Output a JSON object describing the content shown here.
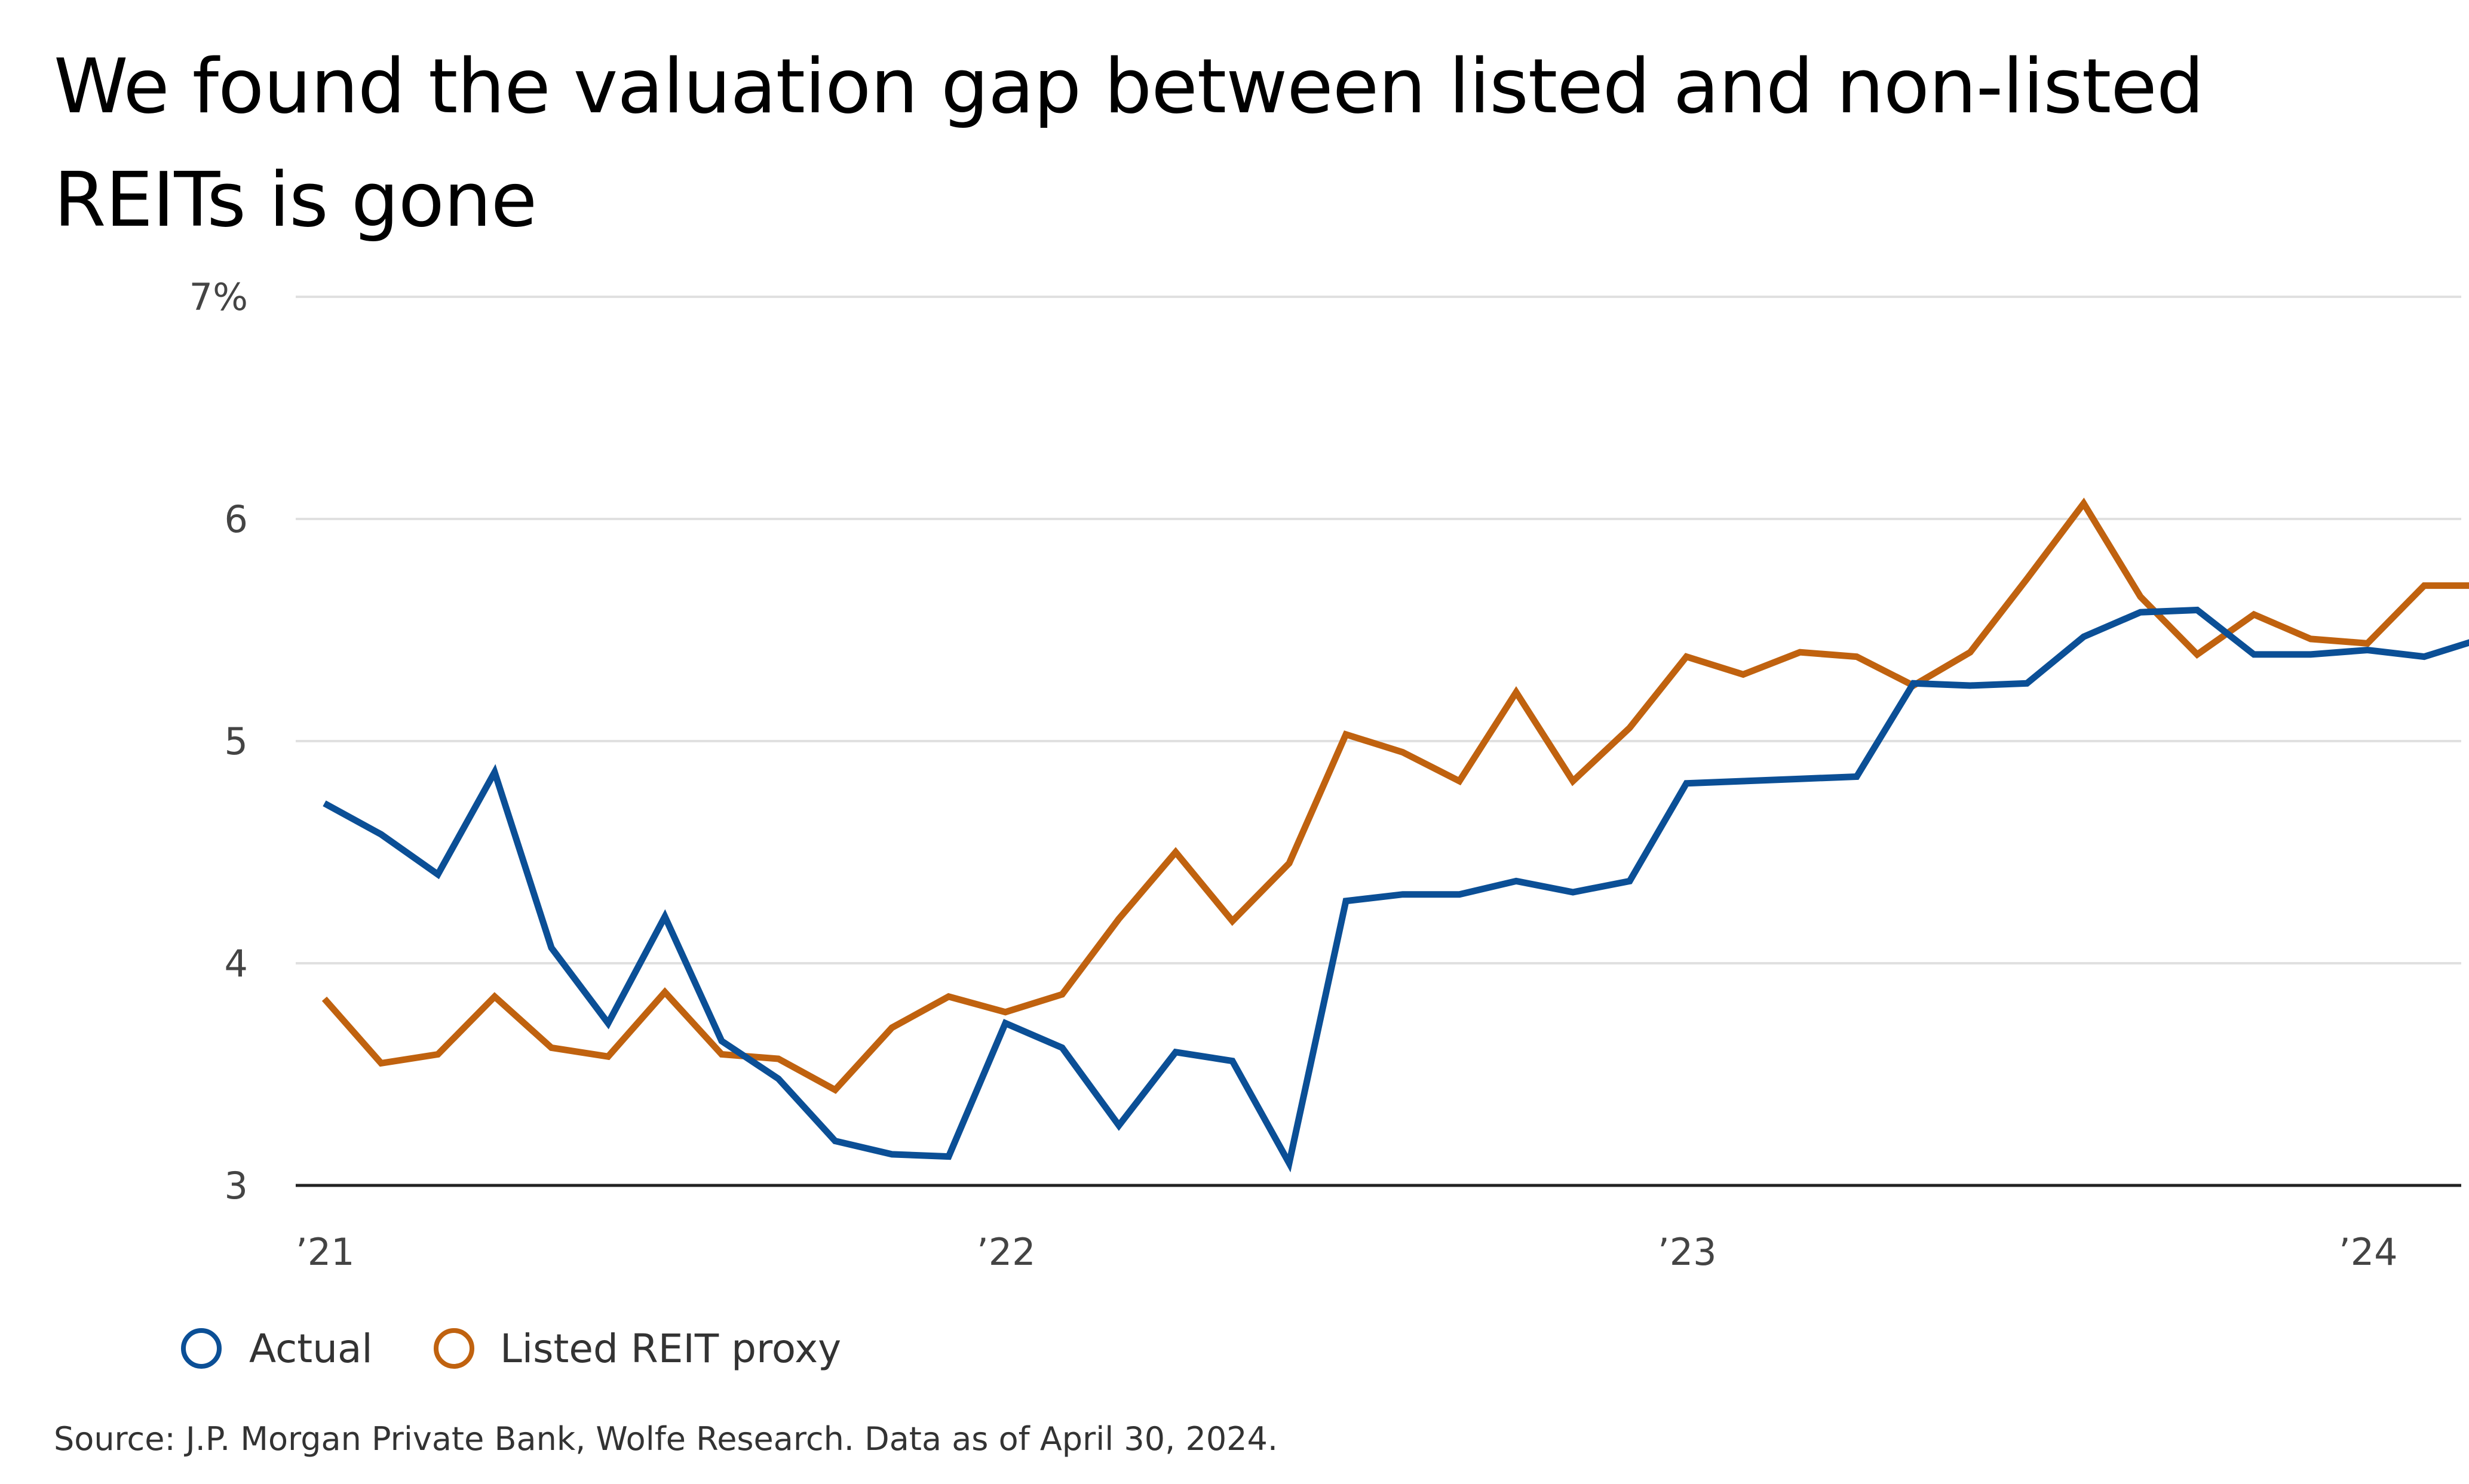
{
  "title": "We found the valuation gap between listed and non-listed REITs is gone",
  "source": "Source: J.P. Morgan Private Bank, Wolfe Research. Data as of April 30, 2024.",
  "colors": {
    "actual": "#0b4f96",
    "proxy": "#c0620f",
    "grid": "#e0e0e0",
    "axis": "#222222"
  },
  "chart_data": {
    "type": "line",
    "title": "We found the valuation gap between listed and non-listed REITs is gone",
    "xlabel": "",
    "ylabel": "",
    "ylim": [
      3,
      7
    ],
    "y_ticks": [
      {
        "value": 7,
        "label": "7%"
      },
      {
        "value": 6,
        "label": "6"
      },
      {
        "value": 5,
        "label": "5"
      },
      {
        "value": 4,
        "label": "4"
      },
      {
        "value": 3,
        "label": "3"
      }
    ],
    "x_ticks": [
      {
        "value": 0,
        "label": "’21"
      },
      {
        "value": 12,
        "label": "’22"
      },
      {
        "value": 24,
        "label": "’23"
      },
      {
        "value": 36,
        "label": "’24"
      }
    ],
    "x_range": [
      -0.5,
      38
    ],
    "grid": true,
    "legend_position": "bottom-left",
    "x": [
      0,
      1,
      2,
      3,
      4,
      5,
      6,
      7,
      8,
      9,
      10,
      11,
      12,
      13,
      14,
      15,
      16,
      17,
      18,
      19,
      20,
      21,
      22,
      23,
      24,
      25,
      26,
      27,
      28,
      29,
      30,
      31,
      32,
      33,
      34,
      35,
      36,
      37,
      38
    ],
    "series": [
      {
        "name": "Actual",
        "color_key": "actual",
        "values": [
          4.72,
          4.58,
          4.4,
          4.86,
          4.07,
          3.73,
          4.21,
          3.65,
          3.48,
          3.2,
          3.14,
          3.13,
          3.73,
          3.62,
          3.27,
          3.6,
          3.56,
          3.1,
          4.28,
          4.31,
          4.31,
          4.37,
          4.32,
          4.37,
          4.81,
          4.82,
          4.83,
          4.84,
          5.26,
          5.25,
          5.26,
          5.47,
          5.58,
          5.59,
          5.39,
          5.39,
          5.41,
          5.38,
          5.46
        ]
      },
      {
        "name": "Listed REIT proxy",
        "color_key": "proxy",
        "values": [
          3.84,
          3.55,
          3.59,
          3.85,
          3.62,
          3.58,
          3.87,
          3.59,
          3.57,
          3.43,
          3.71,
          3.85,
          3.78,
          3.86,
          4.2,
          4.5,
          4.19,
          4.45,
          5.03,
          4.95,
          4.82,
          5.22,
          4.82,
          5.06,
          5.38,
          5.3,
          5.4,
          5.38,
          5.25,
          5.4,
          5.73,
          6.07,
          5.65,
          5.39,
          5.57,
          5.46,
          5.44,
          5.7,
          5.7
        ]
      }
    ]
  }
}
